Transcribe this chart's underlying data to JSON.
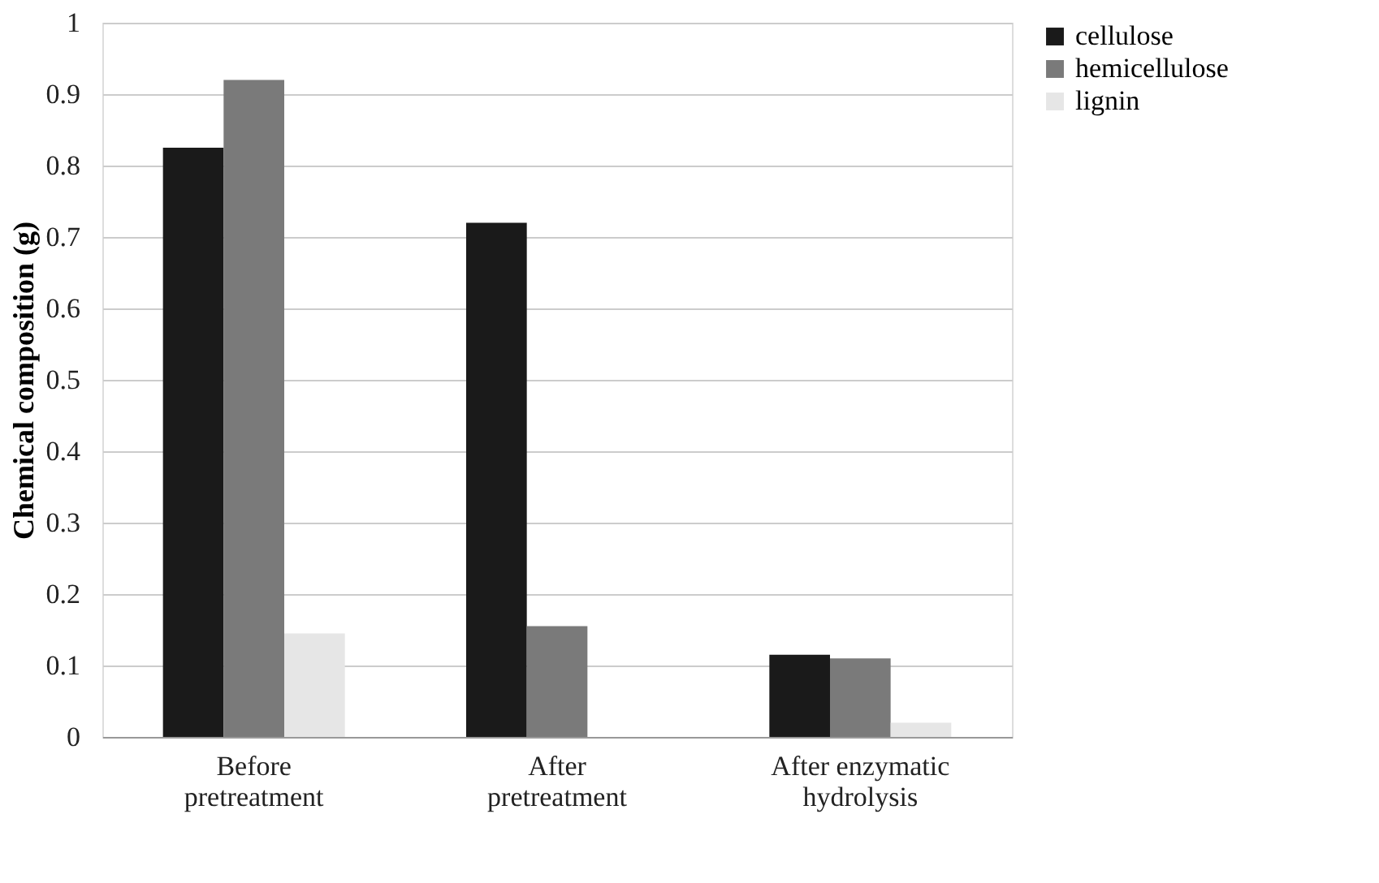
{
  "chart_data": {
    "type": "bar",
    "ylabel": "Chemical composition (g)",
    "categories": [
      "Before pretreatment",
      "After pretreatment",
      "After enzymatic hydrolysis"
    ],
    "series": [
      {
        "name": "cellulose",
        "color": "#1a1a1a",
        "values": [
          0.825,
          0.72,
          0.115
        ]
      },
      {
        "name": "hemicellulose",
        "color": "#7a7a7a",
        "values": [
          0.92,
          0.155,
          0.11
        ]
      },
      {
        "name": "lignin",
        "color": "#e6e6e6",
        "values": [
          0.145,
          0,
          0.02
        ]
      }
    ],
    "ylim": [
      0,
      1
    ],
    "yticks": [
      0,
      0.1,
      0.2,
      0.3,
      0.4,
      0.5,
      0.6,
      0.7,
      0.8,
      0.9,
      1
    ],
    "grid": "y",
    "legend": "right"
  }
}
